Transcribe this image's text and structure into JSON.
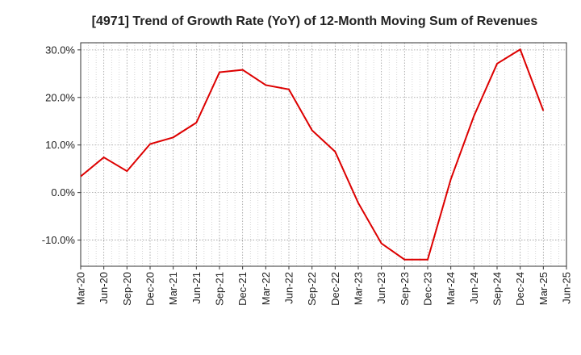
{
  "chart_data": {
    "type": "line",
    "title": "[4971]  Trend of Growth Rate (YoY) of 12-Month Moving Sum of Revenues",
    "xlabel": "",
    "ylabel": "",
    "x_ticks": [
      "Mar-20",
      "Jun-20",
      "Sep-20",
      "Dec-20",
      "Mar-21",
      "Jun-21",
      "Sep-21",
      "Dec-21",
      "Mar-22",
      "Jun-22",
      "Sep-22",
      "Dec-22",
      "Mar-23",
      "Jun-23",
      "Sep-23",
      "Dec-23",
      "Mar-24",
      "Jun-24",
      "Sep-24",
      "Dec-24",
      "Mar-25",
      "Jun-25"
    ],
    "y_ticks": [
      "30.0%",
      "20.0%",
      "10.0%",
      "0.0%",
      "-10.0%"
    ],
    "y_tick_values": [
      30,
      20,
      10,
      0,
      -10
    ],
    "ylim": [
      -15.5,
      31.5
    ],
    "grid": true,
    "series": [
      {
        "color": "#dd0000",
        "x": [
          "Mar-20",
          "Jun-20",
          "Sep-20",
          "Dec-20",
          "Mar-21",
          "Jun-21",
          "Sep-21",
          "Dec-21",
          "Mar-22",
          "Jun-22",
          "Sep-22",
          "Dec-22",
          "Mar-23",
          "Jun-23",
          "Sep-23",
          "Dec-23",
          "Mar-24",
          "Jun-24",
          "Sep-24",
          "Dec-24",
          "Mar-25"
        ],
        "values": [
          3.4,
          7.4,
          4.5,
          10.2,
          11.6,
          14.7,
          25.3,
          25.8,
          22.6,
          21.7,
          13.1,
          8.6,
          -2.2,
          -10.7,
          -14.1,
          -14.1,
          2.8,
          16.1,
          27.1,
          30.1,
          17.2
        ]
      }
    ]
  }
}
